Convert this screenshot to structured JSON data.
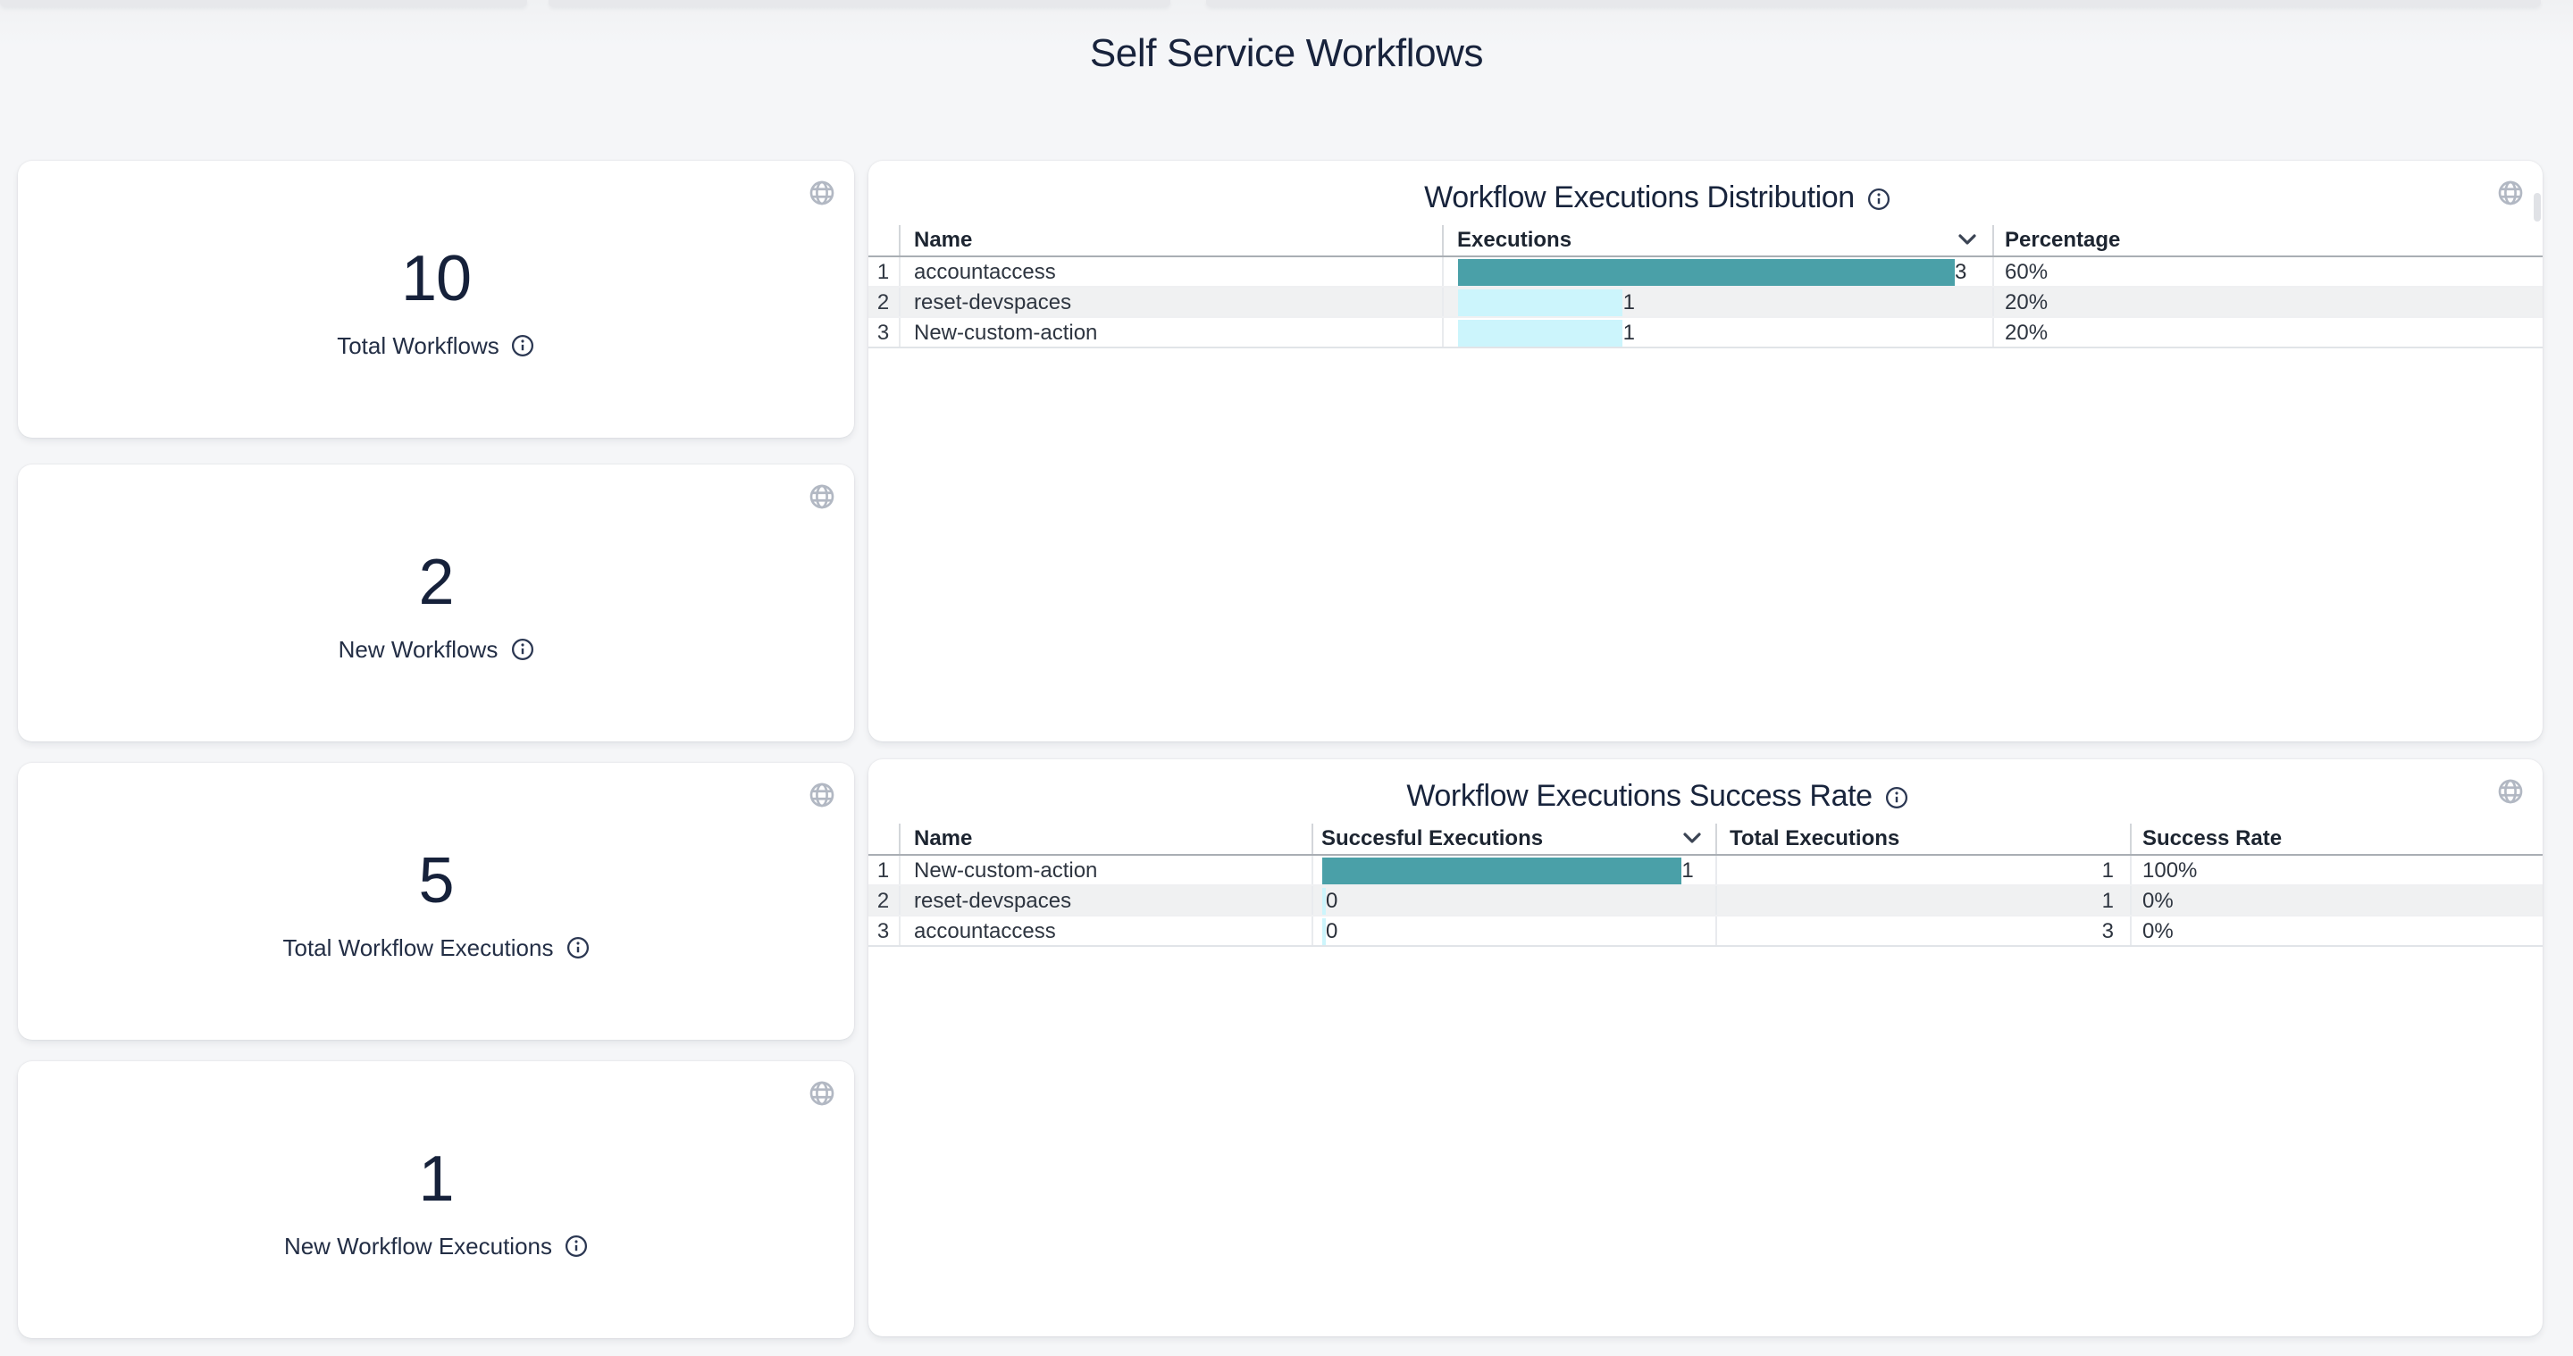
{
  "page": {
    "title": "Self Service Workflows"
  },
  "stat_cards": [
    {
      "value": "10",
      "label": "Total Workflows"
    },
    {
      "value": "2",
      "label": "New Workflows"
    },
    {
      "value": "5",
      "label": "Total Workflow Executions"
    },
    {
      "value": "1",
      "label": "New Workflow Executions"
    }
  ],
  "tables": [
    {
      "title": "Workflow Executions Distribution",
      "columns": {
        "name": "Name",
        "executions": "Executions",
        "percentage": "Percentage"
      },
      "sorted_column": "Executions",
      "rows": [
        {
          "num": "1",
          "name": "accountaccess",
          "executions": 3,
          "percentage": "60%"
        },
        {
          "num": "2",
          "name": "reset-devspaces",
          "executions": 1,
          "percentage": "20%"
        },
        {
          "num": "3",
          "name": "New-custom-action",
          "executions": 1,
          "percentage": "20%"
        }
      ]
    },
    {
      "title": "Workflow Executions Success Rate",
      "columns": {
        "name": "Name",
        "successful": "Succesful Executions",
        "total": "Total Executions",
        "rate": "Success Rate"
      },
      "sorted_column": "Succesful Executions",
      "rows": [
        {
          "num": "1",
          "name": "New-custom-action",
          "successful": 1,
          "total": "1",
          "rate": "100%"
        },
        {
          "num": "2",
          "name": "reset-devspaces",
          "successful": 0,
          "total": "1",
          "rate": "0%"
        },
        {
          "num": "3",
          "name": "accountaccess",
          "successful": 0,
          "total": "3",
          "rate": "0%"
        }
      ]
    }
  ],
  "chart_data": [
    {
      "type": "bar",
      "title": "Workflow Executions Distribution",
      "categories": [
        "accountaccess",
        "reset-devspaces",
        "New-custom-action"
      ],
      "values": [
        3,
        1,
        1
      ],
      "percentages": [
        "60%",
        "20%",
        "20%"
      ],
      "orientation": "horizontal",
      "xlim": [
        0,
        3
      ]
    },
    {
      "type": "bar",
      "title": "Workflow Executions Success Rate",
      "categories": [
        "New-custom-action",
        "reset-devspaces",
        "accountaccess"
      ],
      "values": [
        1,
        0,
        0
      ],
      "totals": [
        1,
        1,
        3
      ],
      "rates": [
        "100%",
        "0%",
        "0%"
      ],
      "orientation": "horizontal",
      "xlim": [
        0,
        1
      ]
    }
  ],
  "icons": {
    "globe": "globe-icon",
    "info": "info-icon",
    "sort": "chevron-down-icon"
  },
  "colors": {
    "bar_primary": "#4AA0A8",
    "bar_secondary": "#CCF5FC",
    "zebra_row": "#F0F1F2",
    "card_bg": "#FFFFFF",
    "page_bg": "#F5F6F8",
    "title_text": "#18233C"
  }
}
